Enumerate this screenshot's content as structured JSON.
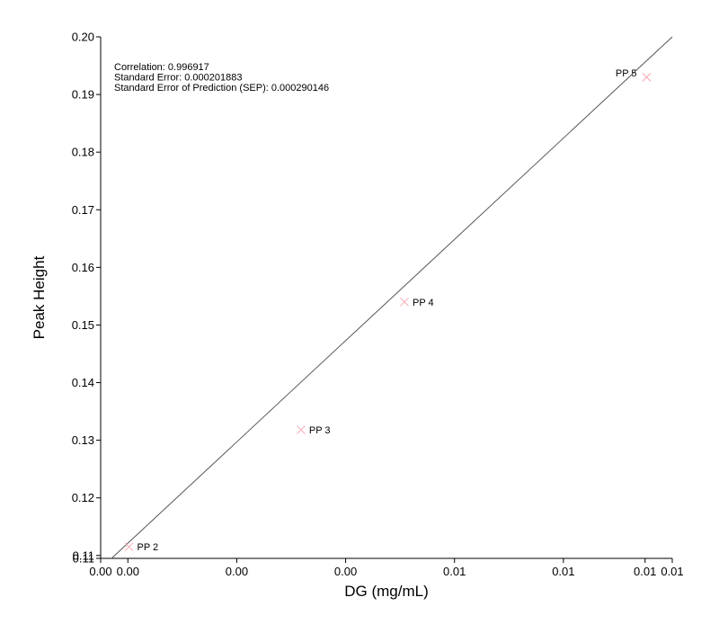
{
  "chart_data": {
    "type": "scatter",
    "xlabel": "DG (mg/mL)",
    "ylabel": "Peak Height",
    "xlim": [
      0.0,
      0.0105
    ],
    "ylim": [
      0.1095,
      0.2
    ],
    "x_ticks": [
      {
        "value": 0.0,
        "label": "0.00"
      },
      {
        "value": 0.0005,
        "label": "0.00"
      },
      {
        "value": 0.0025,
        "label": "0.00"
      },
      {
        "value": 0.0045,
        "label": "0.00"
      },
      {
        "value": 0.0065,
        "label": "0.01"
      },
      {
        "value": 0.0085,
        "label": "0.01"
      },
      {
        "value": 0.01,
        "label": "0.01"
      },
      {
        "value": 0.0105,
        "label": "0.01"
      }
    ],
    "y_ticks": [
      {
        "value": 0.1095,
        "label": "0.11"
      },
      {
        "value": 0.11,
        "label": "0.11"
      },
      {
        "value": 0.12,
        "label": "0.12"
      },
      {
        "value": 0.13,
        "label": "0.13"
      },
      {
        "value": 0.14,
        "label": "0.14"
      },
      {
        "value": 0.15,
        "label": "0.15"
      },
      {
        "value": 0.16,
        "label": "0.16"
      },
      {
        "value": 0.17,
        "label": "0.17"
      },
      {
        "value": 0.18,
        "label": "0.18"
      },
      {
        "value": 0.19,
        "label": "0.19"
      },
      {
        "value": 0.2,
        "label": "0.20"
      }
    ],
    "points": [
      {
        "label": "PP 2",
        "x": 0.00052,
        "y": 0.1115
      },
      {
        "label": "PP 3",
        "x": 0.00368,
        "y": 0.1318
      },
      {
        "label": "PP 4",
        "x": 0.00558,
        "y": 0.154
      },
      {
        "label": "PP 5",
        "x": 0.01003,
        "y": 0.193
      }
    ],
    "fit_line": {
      "x0": 0.0002,
      "y0": 0.1095,
      "x1": 0.0105,
      "y1": 0.2
    },
    "statistics": [
      "Correlation: 0.996917",
      "Standard Error: 0.000201883",
      "Standard Error of Prediction (SEP): 0.000290146"
    ],
    "marker_color": "#f4a6b0",
    "line_color": "#555555",
    "grid": false,
    "legend": "none"
  }
}
